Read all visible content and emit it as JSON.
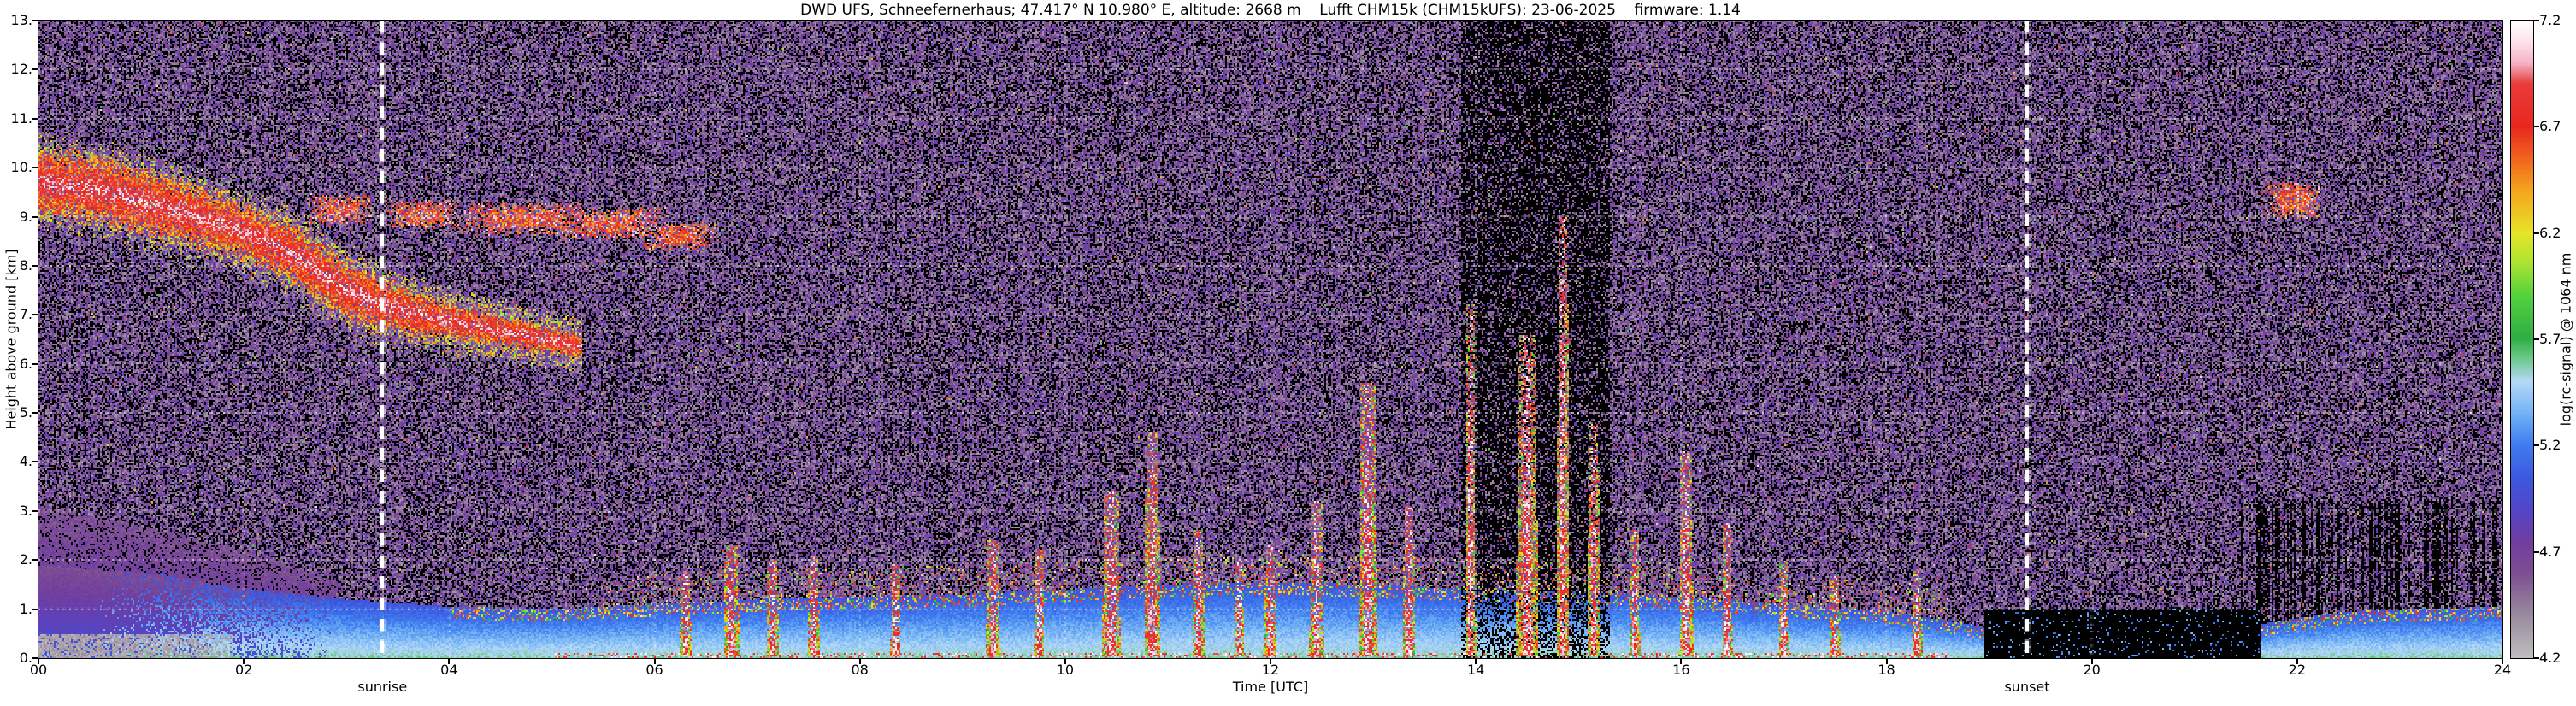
{
  "title": "DWD UFS, Schneefernerhaus; 47.417° N 10.980° E, altitude: 2668 m    Lufft CHM15k (CHM15kUFS): 23-06-2025    firmware: 1.14",
  "chart_data": {
    "type": "heatmap",
    "title": "DWD UFS, Schneefernerhaus; 47.417° N 10.980° E, altitude: 2668 m    Lufft CHM15k (CHM15kUFS): 23-06-2025    firmware: 1.14",
    "xlabel": "Time [UTC]",
    "ylabel": "Height above ground [km]",
    "xlim": [
      0,
      24
    ],
    "ylim": [
      0,
      13
    ],
    "grid": true,
    "x_ticks": [
      {
        "v": 0,
        "label": "00"
      },
      {
        "v": 2,
        "label": "02"
      },
      {
        "v": 4,
        "label": "04"
      },
      {
        "v": 6,
        "label": "06"
      },
      {
        "v": 8,
        "label": "08"
      },
      {
        "v": 10,
        "label": "10"
      },
      {
        "v": 12,
        "label": "12"
      },
      {
        "v": 14,
        "label": "14"
      },
      {
        "v": 16,
        "label": "16"
      },
      {
        "v": 18,
        "label": "18"
      },
      {
        "v": 20,
        "label": "20"
      },
      {
        "v": 22,
        "label": "22"
      },
      {
        "v": 24,
        "label": "24"
      }
    ],
    "y_ticks": [
      {
        "v": 0,
        "label": "0."
      },
      {
        "v": 1,
        "label": "1."
      },
      {
        "v": 2,
        "label": "2."
      },
      {
        "v": 3,
        "label": "3."
      },
      {
        "v": 4,
        "label": "4."
      },
      {
        "v": 5,
        "label": "5."
      },
      {
        "v": 6,
        "label": "6."
      },
      {
        "v": 7,
        "label": "7."
      },
      {
        "v": 8,
        "label": "8."
      },
      {
        "v": 9,
        "label": "9."
      },
      {
        "v": 10,
        "label": "10."
      },
      {
        "v": 11,
        "label": "11."
      },
      {
        "v": 12,
        "label": "12."
      },
      {
        "v": 13,
        "label": "13."
      }
    ],
    "colorbar": {
      "label": "log(rc-signal) @ 1064 nm",
      "range": [
        4.2,
        7.2
      ],
      "ticks": [
        {
          "v": 4.2,
          "label": "4.2"
        },
        {
          "v": 4.7,
          "label": "4.7"
        },
        {
          "v": 5.2,
          "label": "5.2"
        },
        {
          "v": 5.7,
          "label": "5.7"
        },
        {
          "v": 6.2,
          "label": "6.2"
        },
        {
          "v": 6.7,
          "label": "6.7"
        },
        {
          "v": 7.2,
          "label": "7.2"
        }
      ],
      "stops": [
        [
          4.2,
          "#bebebe"
        ],
        [
          4.4,
          "#9a8a9e"
        ],
        [
          4.6,
          "#7e4e92"
        ],
        [
          4.75,
          "#6f3da2"
        ],
        [
          4.9,
          "#5346c8"
        ],
        [
          5.05,
          "#3c5ae0"
        ],
        [
          5.2,
          "#3f7df0"
        ],
        [
          5.35,
          "#74b4f5"
        ],
        [
          5.5,
          "#b5d9f8"
        ],
        [
          5.62,
          "#63c87d"
        ],
        [
          5.7,
          "#2fae46"
        ],
        [
          5.9,
          "#52d23c"
        ],
        [
          6.05,
          "#a8e432"
        ],
        [
          6.2,
          "#e8e428"
        ],
        [
          6.4,
          "#f5a51e"
        ],
        [
          6.55,
          "#f2641e"
        ],
        [
          6.7,
          "#e8281e"
        ],
        [
          6.9,
          "#e83c3c"
        ],
        [
          7.0,
          "#f5b4c8"
        ],
        [
          7.1,
          "#fce4ec"
        ],
        [
          7.2,
          "#ffffff"
        ]
      ]
    },
    "no_data_color": "#000000",
    "events": [
      {
        "label": "sunrise",
        "time": 3.35
      },
      {
        "label": "sunset",
        "time": 19.37
      }
    ],
    "features": {
      "background": {
        "black_fraction": 0.32,
        "purple_range": [
          4.35,
          4.85
        ]
      },
      "dark_column": {
        "t0": 13.85,
        "t1": 15.3,
        "black_fraction": 0.72
      },
      "night_low_dark": {
        "t0": 18.95,
        "t1": 21.65,
        "h_top": 1.0,
        "black_fraction": 0.93
      },
      "post_sunset_stripes": {
        "t0": 21.3,
        "t1": 24,
        "h_top": 3.2
      },
      "cloud_band": {
        "path": [
          [
            0,
            9.7
          ],
          [
            0.6,
            9.55
          ],
          [
            1.2,
            9.2
          ],
          [
            1.8,
            8.85
          ],
          [
            2.4,
            8.35
          ],
          [
            3.0,
            7.5
          ],
          [
            3.3,
            7.25
          ],
          [
            3.7,
            7.0
          ],
          [
            4.2,
            6.8
          ],
          [
            4.7,
            6.6
          ],
          [
            5.3,
            6.35
          ]
        ],
        "half_thickness": [
          [
            0,
            0.55
          ],
          [
            1,
            0.55
          ],
          [
            2,
            0.45
          ],
          [
            3,
            0.5
          ],
          [
            4,
            0.3
          ],
          [
            5.3,
            0.2
          ]
        ],
        "value_range": [
          6.2,
          7.2
        ]
      },
      "cloud_patches": [
        {
          "t": 2.95,
          "h": 9.15,
          "w": 0.45,
          "thick": 0.28
        },
        {
          "t": 3.75,
          "h": 9.05,
          "w": 0.5,
          "thick": 0.26
        },
        {
          "t": 4.75,
          "h": 8.95,
          "w": 0.95,
          "thick": 0.3
        },
        {
          "t": 5.55,
          "h": 8.85,
          "w": 0.75,
          "thick": 0.3
        },
        {
          "t": 6.25,
          "h": 8.6,
          "w": 0.5,
          "thick": 0.25
        },
        {
          "t": 21.95,
          "h": 9.35,
          "w": 0.4,
          "thick": 0.35
        }
      ],
      "boundary_layer": {
        "top_profile": [
          [
            0,
            1.9
          ],
          [
            1.2,
            1.7
          ],
          [
            2,
            1.4
          ],
          [
            3,
            1.2
          ],
          [
            4,
            1.05
          ],
          [
            5,
            1.0
          ],
          [
            6,
            1.1
          ],
          [
            7,
            1.2
          ],
          [
            8,
            1.25
          ],
          [
            9,
            1.3
          ],
          [
            10,
            1.4
          ],
          [
            11,
            1.5
          ],
          [
            12,
            1.55
          ],
          [
            13,
            1.5
          ],
          [
            14,
            1.4
          ],
          [
            15,
            1.35
          ],
          [
            16,
            1.25
          ],
          [
            17,
            1.1
          ],
          [
            18,
            0.95
          ],
          [
            18.8,
            0.7
          ],
          [
            19.3,
            0.5
          ],
          [
            21,
            0.45
          ],
          [
            21.8,
            0.75
          ],
          [
            22.5,
            0.95
          ],
          [
            23.2,
            1.0
          ],
          [
            24,
            1.05
          ]
        ],
        "value_range": [
          5.0,
          5.6
        ]
      },
      "left_wedge": {
        "t_end": 2.9,
        "top_profile": [
          [
            0,
            3.1
          ],
          [
            1,
            2.7
          ],
          [
            2,
            2.2
          ],
          [
            2.9,
            1.6
          ]
        ],
        "value_range": [
          4.5,
          5.0
        ],
        "gray_bottom": {
          "h_top": 0.5,
          "t_end": 1.9,
          "value_range": [
            4.2,
            4.4
          ]
        }
      },
      "plumes": [
        {
          "t": 6.3,
          "top": 1.8,
          "w": 0.12
        },
        {
          "t": 6.75,
          "top": 2.3,
          "w": 0.16
        },
        {
          "t": 7.15,
          "top": 2.0,
          "w": 0.12
        },
        {
          "t": 7.55,
          "top": 2.1,
          "w": 0.12
        },
        {
          "t": 8.35,
          "top": 1.9,
          "w": 0.1
        },
        {
          "t": 9.3,
          "top": 2.4,
          "w": 0.14
        },
        {
          "t": 9.75,
          "top": 2.2,
          "w": 0.1
        },
        {
          "t": 10.45,
          "top": 3.4,
          "w": 0.18
        },
        {
          "t": 10.85,
          "top": 4.6,
          "w": 0.16
        },
        {
          "t": 11.3,
          "top": 2.6,
          "w": 0.12
        },
        {
          "t": 11.7,
          "top": 2.0,
          "w": 0.1
        },
        {
          "t": 12.0,
          "top": 2.3,
          "w": 0.12
        },
        {
          "t": 12.45,
          "top": 3.2,
          "w": 0.14
        },
        {
          "t": 12.95,
          "top": 5.6,
          "w": 0.18
        },
        {
          "t": 13.35,
          "top": 3.1,
          "w": 0.12
        },
        {
          "t": 13.95,
          "top": 7.2,
          "w": 0.1
        },
        {
          "t": 14.5,
          "top": 6.6,
          "w": 0.22
        },
        {
          "t": 14.85,
          "top": 9.0,
          "w": 0.12
        },
        {
          "t": 15.15,
          "top": 4.8,
          "w": 0.12
        },
        {
          "t": 15.55,
          "top": 2.6,
          "w": 0.1
        },
        {
          "t": 16.05,
          "top": 4.2,
          "w": 0.14
        },
        {
          "t": 16.45,
          "top": 2.8,
          "w": 0.1
        },
        {
          "t": 17.0,
          "top": 2.0,
          "w": 0.1
        },
        {
          "t": 17.5,
          "top": 1.7,
          "w": 0.1
        },
        {
          "t": 18.3,
          "top": 1.8,
          "w": 0.1
        }
      ],
      "cap_speckle": {
        "t0": 5.5,
        "t1": 18.6,
        "band_km": 0.6,
        "fraction": 0.09
      }
    }
  }
}
